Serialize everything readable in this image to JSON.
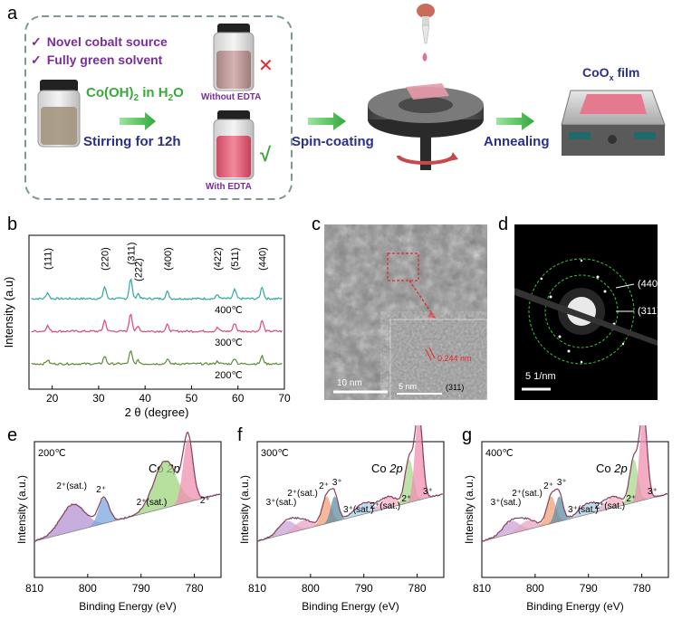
{
  "panel_a": {
    "label": "a",
    "check1": "Novel cobalt source",
    "check2": "Fully green solvent",
    "reagent": "Co(OH)",
    "reagent_sub": "2",
    "reagent_rest": " in H",
    "reagent_sub2": "2",
    "reagent_end": "O",
    "stirring": "Stirring for 12h",
    "without": "Without EDTA",
    "with": "With EDTA",
    "spin": "Spin-coating",
    "anneal": "Annealing",
    "film_main": "CoO",
    "film_sub": "x",
    "film_end": " film",
    "cross": "✕",
    "check": "√"
  },
  "panel_b": {
    "label": "b",
    "ylabel": "Intensity (a.u)",
    "xlabel": "2 θ (degree)",
    "peaks": [
      "(111)",
      "(220)",
      "(311)",
      "(222)",
      "(400)",
      "(422)",
      "(511)",
      "(440)"
    ],
    "temps": [
      "400℃",
      "300℃",
      "200℃"
    ],
    "xticks": [
      "20",
      "30",
      "40",
      "50",
      "60",
      "70"
    ]
  },
  "panel_c": {
    "label": "c",
    "scale1": "10 nm",
    "scale2": "5 nm",
    "spacing": "0.244 nm",
    "plane": "(311)"
  },
  "panel_d": {
    "label": "d",
    "ring1": "(440)",
    "ring2": "(311)",
    "scale": "5 1/nm"
  },
  "panel_e": {
    "label": "e",
    "temp": "200℃",
    "co": "Co ",
    "co2p": "2p",
    "ann": [
      "2⁺(sat.)",
      "2⁺",
      "2⁺(sat.)",
      "2⁺"
    ],
    "xticks": [
      "810",
      "800",
      "790",
      "780"
    ],
    "xlabel": "Binding Energy (eV)",
    "ylabel": "Intensity (a.u.)"
  },
  "panel_f": {
    "label": "f",
    "temp": "300℃",
    "co": "Co ",
    "co2p": "2p",
    "ann": [
      "3⁺(sat.)",
      "2⁺(sat.)",
      "2⁺",
      "3⁺",
      "3⁺(sat.)",
      "2⁺(sat.)",
      "2⁺",
      "3⁺"
    ],
    "xticks": [
      "810",
      "800",
      "790",
      "780"
    ],
    "xlabel": "Binding Energy (eV)",
    "ylabel": "Intensity (a.u.)"
  },
  "panel_g": {
    "label": "g",
    "temp": "400℃",
    "co": "Co ",
    "co2p": "2p",
    "ann": [
      "3⁺(sat.)",
      "2⁺(sat.)",
      "2⁺",
      "3⁺",
      "3⁺(sat.)",
      "2⁺(sat.)",
      "2⁺",
      "3⁺"
    ],
    "xticks": [
      "810",
      "800",
      "790",
      "780"
    ],
    "xlabel": "Binding Energy (eV)",
    "ylabel": "Intensity (a.u.)"
  },
  "colors": {
    "purple": "#7b2d9c",
    "green_text": "#3aa83a",
    "navy": "#2a2f8a",
    "red": "#e8252b",
    "teal": "#2fa7a0",
    "pink": "#d9487f",
    "olive": "#5c8a3a"
  }
}
